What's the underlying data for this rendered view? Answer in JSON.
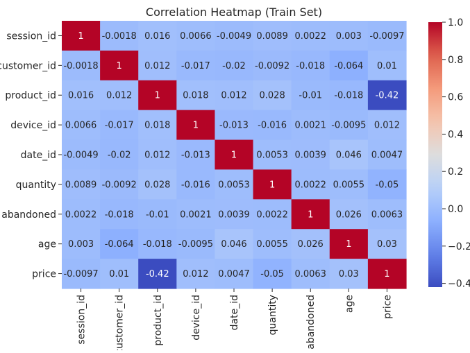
{
  "chart_data": {
    "type": "heatmap",
    "title": "Correlation Heatmap (Train Set)",
    "xlabel": "",
    "ylabel": "",
    "rows": [
      "session_id",
      "customer_id",
      "product_id",
      "device_id",
      "date_id",
      "quantity",
      "abandoned",
      "age",
      "price"
    ],
    "cols": [
      "session_id",
      "customer_id",
      "product_id",
      "device_id",
      "date_id",
      "quantity",
      "abandoned",
      "age",
      "price"
    ],
    "values": [
      [
        1,
        -0.0018,
        0.016,
        0.0066,
        -0.0049,
        0.0089,
        0.0022,
        0.003,
        -0.0097
      ],
      [
        -0.0018,
        1,
        0.012,
        -0.017,
        -0.02,
        -0.0092,
        -0.018,
        -0.064,
        0.01
      ],
      [
        0.016,
        0.012,
        1,
        0.018,
        0.012,
        0.028,
        -0.01,
        -0.018,
        -0.42
      ],
      [
        0.0066,
        -0.017,
        0.018,
        1,
        -0.013,
        -0.016,
        0.0021,
        -0.0095,
        0.012
      ],
      [
        -0.0049,
        -0.02,
        0.012,
        -0.013,
        1,
        0.0053,
        0.0039,
        0.046,
        0.0047
      ],
      [
        0.0089,
        -0.0092,
        0.028,
        -0.016,
        0.0053,
        1,
        0.0022,
        0.0055,
        -0.05
      ],
      [
        0.0022,
        -0.018,
        -0.01,
        0.0021,
        0.0039,
        0.0022,
        1,
        0.026,
        0.0063
      ],
      [
        0.003,
        -0.064,
        -0.018,
        -0.0095,
        0.046,
        0.0055,
        0.026,
        1,
        0.03
      ],
      [
        -0.0097,
        0.01,
        -0.42,
        0.012,
        0.0047,
        -0.05,
        0.0063,
        0.03,
        1
      ]
    ],
    "labels": [
      [
        "1",
        "-0.0018",
        "0.016",
        "0.0066",
        "-0.0049",
        "0.0089",
        "0.0022",
        "0.003",
        "-0.0097"
      ],
      [
        "-0.0018",
        "1",
        "0.012",
        "-0.017",
        "-0.02",
        "-0.0092",
        "-0.018",
        "-0.064",
        "0.01"
      ],
      [
        "0.016",
        "0.012",
        "1",
        "0.018",
        "0.012",
        "0.028",
        "-0.01",
        "-0.018",
        "-0.42"
      ],
      [
        "0.0066",
        "-0.017",
        "0.018",
        "1",
        "-0.013",
        "-0.016",
        "0.0021",
        "-0.0095",
        "0.012"
      ],
      [
        "-0.0049",
        "-0.02",
        "0.012",
        "-0.013",
        "1",
        "0.0053",
        "0.0039",
        "0.046",
        "0.0047"
      ],
      [
        "0.0089",
        "-0.0092",
        "0.028",
        "-0.016",
        "0.0053",
        "1",
        "0.0022",
        "0.0055",
        "-0.05"
      ],
      [
        "0.0022",
        "-0.018",
        "-0.01",
        "0.0021",
        "0.0039",
        "0.0022",
        "1",
        "0.026",
        "0.0063"
      ],
      [
        "0.003",
        "-0.064",
        "-0.018",
        "-0.0095",
        "0.046",
        "0.0055",
        "0.026",
        "1",
        "0.03"
      ],
      [
        "-0.0097",
        "0.01",
        "-0.42",
        "0.012",
        "0.0047",
        "-0.05",
        "0.0063",
        "0.03",
        "1"
      ]
    ],
    "colorbar": {
      "min": -0.42,
      "max": 1,
      "ticks": [
        1.0,
        0.8,
        0.6,
        0.4,
        0.2,
        0.0,
        -0.2,
        -0.4
      ],
      "tick_labels": [
        "1.0",
        "0.8",
        "0.6",
        "0.4",
        "0.2",
        "0.0",
        "−0.2",
        "−0.4"
      ],
      "colormap": "coolwarm"
    },
    "grid": false,
    "legend": "colorbar-right"
  }
}
